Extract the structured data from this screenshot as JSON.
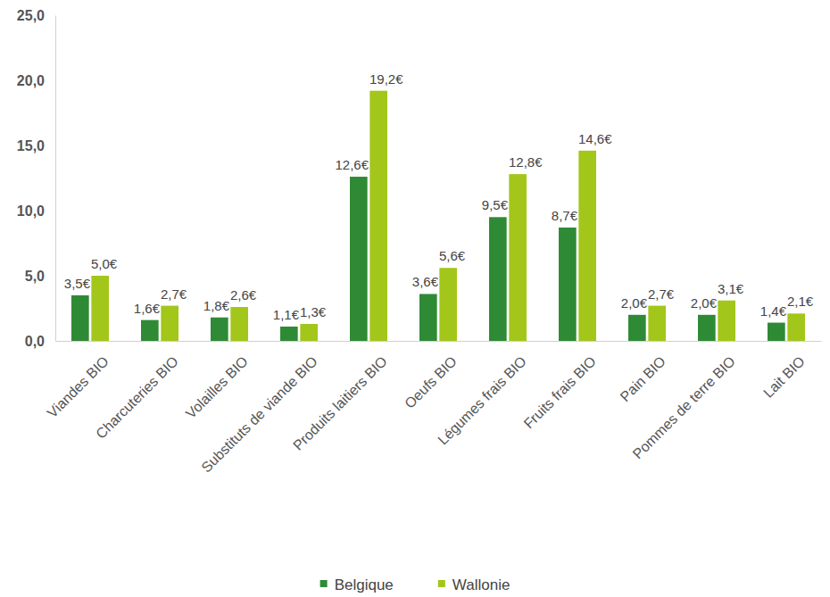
{
  "chart_data": {
    "type": "bar",
    "categories": [
      "Viandes BIO",
      "Charcuteries BIO",
      "Volailles BIO",
      "Substituts de viande BIO",
      "Produits laitiers BIO",
      "Oeufs BIO",
      "Légumes frais BIO",
      "Fruits frais BIO",
      "Pain BIO",
      "Pommes de terre BIO",
      "Lait BIO"
    ],
    "series": [
      {
        "name": "Belgique",
        "color": "#2f8a36",
        "values": [
          3.5,
          1.6,
          1.8,
          1.1,
          12.6,
          3.6,
          9.5,
          8.7,
          2.0,
          2.0,
          1.4
        ],
        "value_labels": [
          "3,5€",
          "1,6€",
          "1,8€",
          "1,1€",
          "12,6€",
          "3,6€",
          "9,5€",
          "8,7€",
          "2,0€",
          "2,0€",
          "1,4€"
        ]
      },
      {
        "name": "Wallonie",
        "color": "#a3c61a",
        "values": [
          5.0,
          2.7,
          2.6,
          1.3,
          19.2,
          5.6,
          12.8,
          14.6,
          2.7,
          3.1,
          2.1
        ],
        "value_labels": [
          "5,0€",
          "2,7€",
          "2,6€",
          "1,3€",
          "19,2€",
          "5,6€",
          "12,8€",
          "14,6€",
          "2,7€",
          "3,1€",
          "2,1€"
        ]
      }
    ],
    "ylim": [
      0,
      25
    ],
    "yticks": [
      {
        "value": 0,
        "label": "0,0"
      },
      {
        "value": 5,
        "label": "5,0"
      },
      {
        "value": 10,
        "label": "10,0"
      },
      {
        "value": 15,
        "label": "15,0"
      },
      {
        "value": 20,
        "label": "20,0"
      },
      {
        "value": 25,
        "label": "25,0"
      }
    ],
    "grid": false,
    "data_labels": true,
    "legend": "bottom"
  }
}
